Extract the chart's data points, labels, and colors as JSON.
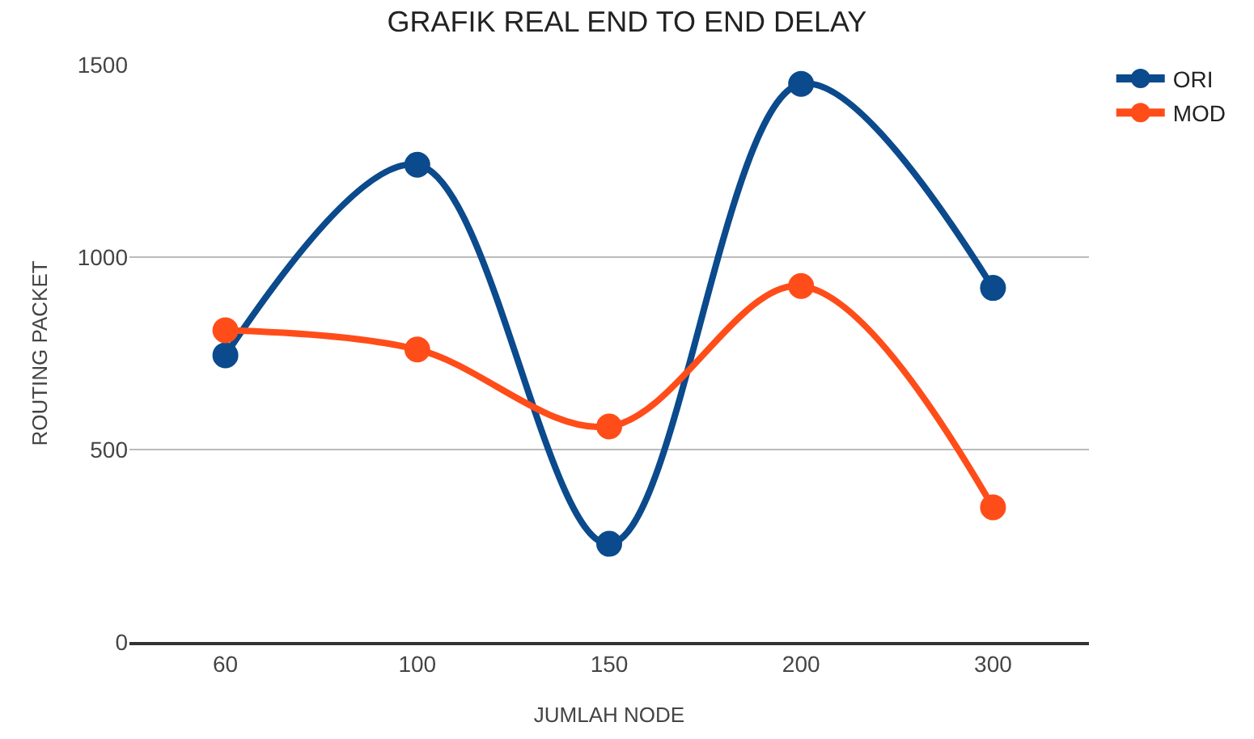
{
  "chart_data": {
    "type": "line",
    "title": "GRAFIK REAL END TO END DELAY",
    "xlabel": "JUMLAH NODE",
    "ylabel": "ROUTING PACKET",
    "categories": [
      "60",
      "100",
      "150",
      "200",
      "300"
    ],
    "series": [
      {
        "name": "ORI",
        "color": "#0b4a8c",
        "values": [
          745,
          1240,
          255,
          1450,
          920
        ]
      },
      {
        "name": "MOD",
        "color": "#ff4d1a",
        "values": [
          810,
          760,
          560,
          925,
          350
        ]
      }
    ],
    "ylim": [
      0,
      1500
    ],
    "yticks": [
      0,
      500,
      1000,
      1500
    ],
    "grid": "y",
    "legend": "top right",
    "marker": "circle",
    "line_style": "solid"
  }
}
